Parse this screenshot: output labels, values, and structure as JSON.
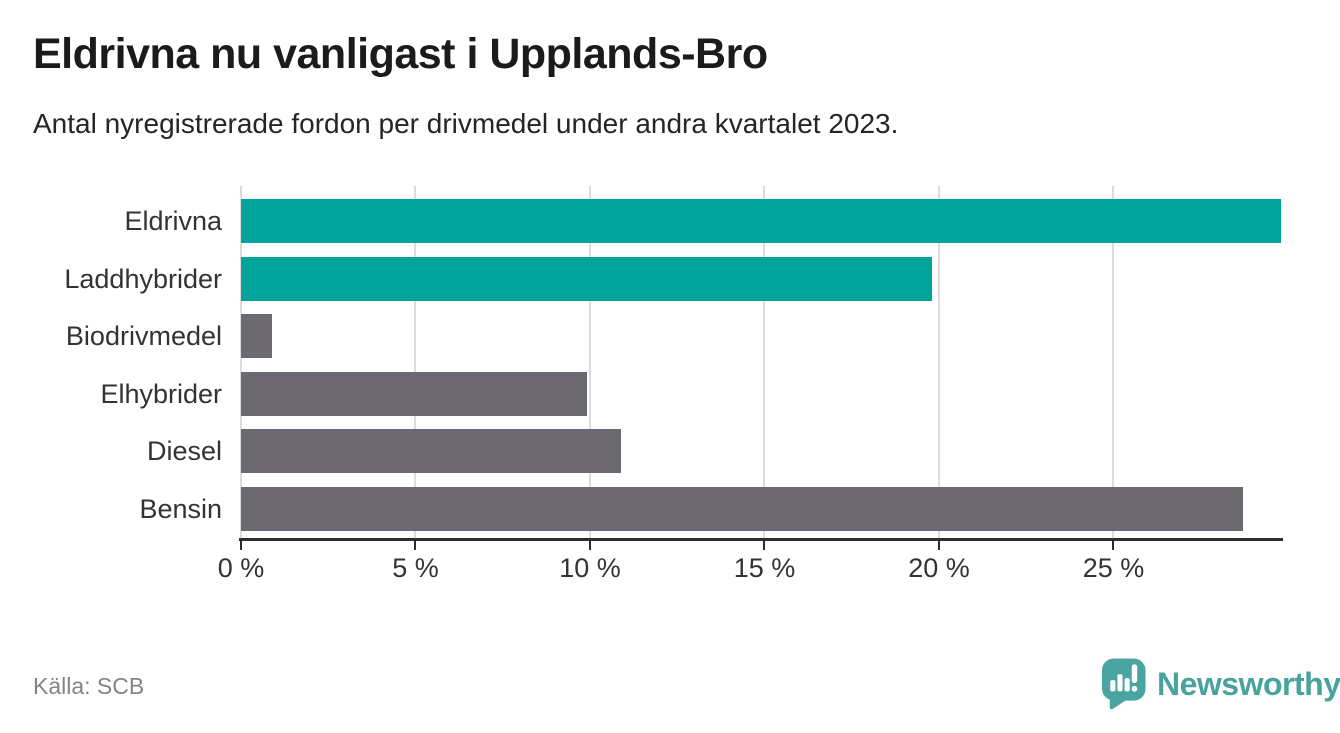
{
  "chart_data": {
    "type": "bar",
    "orientation": "horizontal",
    "title": "Eldrivna nu vanligast i Upplands-Bro",
    "subtitle": "Antal nyregistrerade fordon per drivmedel under andra kvartalet 2023.",
    "categories": [
      "Eldrivna",
      "Laddhybrider",
      "Biodrivmedel",
      "Elhybrider",
      "Diesel",
      "Bensin"
    ],
    "values": [
      29.8,
      19.8,
      0.9,
      9.9,
      10.9,
      28.7
    ],
    "unit": "%",
    "bar_colors": [
      "#00a49a",
      "#00a49a",
      "#6c6a70",
      "#6c6a70",
      "#6c6a70",
      "#6c6a70"
    ],
    "highlight_color": "#00a49a",
    "default_color": "#6c6a70",
    "xlim": [
      0,
      29.8
    ],
    "x_ticks": [
      0,
      5,
      10,
      15,
      20,
      25
    ],
    "x_tick_labels": [
      "0 %",
      "5 %",
      "10 %",
      "15 %",
      "20 %",
      "25 %"
    ],
    "grid": true,
    "gridline_color": "#dcdcdc",
    "axis_color": "#2d2d2d",
    "legend_position": "none"
  },
  "footer": {
    "source": "Källa: SCB",
    "brand": "Newsworthy",
    "brand_color": "#48a29d",
    "brand_icon": "newsworthy-bubble-barchart-icon",
    "brand_icon_color": "#4aa5a0"
  }
}
